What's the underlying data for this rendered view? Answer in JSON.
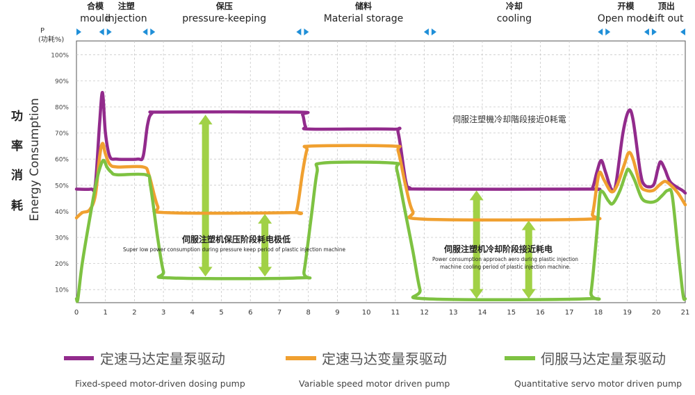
{
  "phases": [
    {
      "cn": "合模",
      "en": "mould"
    },
    {
      "cn": "注塑",
      "en": "injection"
    },
    {
      "cn": "保压",
      "en": "pressure-keeping"
    },
    {
      "cn": "储料",
      "en": "Material storage"
    },
    {
      "cn": "冷却",
      "en": "cooling"
    },
    {
      "cn": "开模",
      "en": "Open mode"
    },
    {
      "cn": "顶出",
      "en": "Lift out"
    }
  ],
  "y_unit_label": [
    "P",
    "(功耗%)"
  ],
  "y_axis_title_cn": [
    "功",
    "率",
    "消",
    "耗"
  ],
  "y_axis_title_en": "Energy Consumption",
  "annotations": {
    "top_right_cn": "伺服注塑機冷却階段接近0耗電",
    "pressure_cn": "伺服注塑机保压阶段耗电极低",
    "pressure_en": "Super low power consumption during pressure keep period of plastic injection machine",
    "cooling_cn": "伺服注塑机冷却阶段接近耗电",
    "cooling_en_1": "Power consumption approach aero during plastic injection",
    "cooling_en_2": "machine cooling period of plastic injection machine."
  },
  "legend": [
    {
      "cn": "定速马达定量泵驱动",
      "en": "Fixed-speed motor-driven dosing pump",
      "color": "#922b8c"
    },
    {
      "cn": "定速马达变量泵驱动",
      "en": "Variable speed motor driven pump",
      "color": "#f0a030"
    },
    {
      "cn": "伺服马达定量泵驱动",
      "en": "Quantitative servo motor driven pump",
      "color": "#7ec242"
    }
  ],
  "colors": {
    "axis_arrow": "#1f8fd8",
    "grid": "#c8c8c8",
    "arrow_fill": "#9ccf3c"
  },
  "chart_data": {
    "type": "line",
    "xlim": [
      0,
      21
    ],
    "ylim": [
      5,
      100
    ],
    "x_ticks": [
      "0",
      "1",
      "2",
      "3",
      "4",
      "5",
      "6",
      "7",
      "8",
      "9",
      "10",
      "11",
      "12",
      "13",
      "14",
      "15",
      "16",
      "17",
      "18",
      "19",
      "20",
      "21"
    ],
    "y_ticks": [
      "10%",
      "20%",
      "30%",
      "40%",
      "50%",
      "60%",
      "70%",
      "80%",
      "90%",
      "100%"
    ],
    "phase_boundaries": [
      0,
      1,
      2.5,
      7.8,
      12.2,
      18.2,
      19.8,
      21
    ],
    "series": [
      {
        "name": "定速马达定量泵驱动",
        "color": "#922b8c",
        "points": [
          [
            0,
            48.5
          ],
          [
            0.5,
            48.5
          ],
          [
            0.65,
            50
          ],
          [
            0.8,
            74
          ],
          [
            0.9,
            85.5
          ],
          [
            1.0,
            70
          ],
          [
            1.15,
            61
          ],
          [
            1.4,
            60
          ],
          [
            2.1,
            60
          ],
          [
            2.3,
            61
          ],
          [
            2.45,
            73
          ],
          [
            2.6,
            77.5
          ],
          [
            3,
            78
          ],
          [
            7.6,
            78
          ],
          [
            7.8,
            77
          ],
          [
            7.9,
            72.5
          ],
          [
            8.1,
            71.5
          ],
          [
            10.9,
            71.5
          ],
          [
            11.1,
            70
          ],
          [
            11.35,
            52
          ],
          [
            11.5,
            49
          ],
          [
            12,
            48.5
          ],
          [
            17.6,
            48.5
          ],
          [
            17.8,
            49
          ],
          [
            17.95,
            55
          ],
          [
            18.1,
            59.5
          ],
          [
            18.25,
            55
          ],
          [
            18.45,
            48.5
          ],
          [
            18.6,
            50
          ],
          [
            18.85,
            70
          ],
          [
            19.05,
            78.5
          ],
          [
            19.2,
            75
          ],
          [
            19.45,
            55
          ],
          [
            19.6,
            50
          ],
          [
            19.9,
            50
          ],
          [
            20.05,
            56
          ],
          [
            20.15,
            59
          ],
          [
            20.3,
            56
          ],
          [
            20.5,
            51
          ],
          [
            20.9,
            48
          ],
          [
            21,
            47
          ]
        ]
      },
      {
        "name": "定速马达变量泵驱动",
        "color": "#f0a030",
        "points": [
          [
            0,
            37.5
          ],
          [
            0.2,
            39.5
          ],
          [
            0.45,
            40.5
          ],
          [
            0.65,
            46
          ],
          [
            0.8,
            61
          ],
          [
            0.9,
            66
          ],
          [
            1.0,
            62
          ],
          [
            1.15,
            58
          ],
          [
            1.4,
            57
          ],
          [
            2.3,
            57
          ],
          [
            2.5,
            54
          ],
          [
            2.8,
            42
          ],
          [
            3.1,
            39.5
          ],
          [
            7.4,
            39.5
          ],
          [
            7.6,
            40.5
          ],
          [
            7.8,
            55
          ],
          [
            7.95,
            63.5
          ],
          [
            8.1,
            65
          ],
          [
            10.9,
            65
          ],
          [
            11.1,
            63
          ],
          [
            11.35,
            50
          ],
          [
            11.6,
            40
          ],
          [
            12,
            37
          ],
          [
            17.6,
            37
          ],
          [
            17.8,
            39
          ],
          [
            17.95,
            50
          ],
          [
            18.05,
            55
          ],
          [
            18.2,
            52
          ],
          [
            18.45,
            47.5
          ],
          [
            18.65,
            50
          ],
          [
            18.9,
            58
          ],
          [
            19.05,
            62.5
          ],
          [
            19.2,
            60
          ],
          [
            19.45,
            50
          ],
          [
            19.65,
            48
          ],
          [
            19.9,
            48
          ],
          [
            20.1,
            50
          ],
          [
            20.3,
            51.5
          ],
          [
            20.5,
            50
          ],
          [
            20.75,
            47
          ],
          [
            21,
            42.5
          ]
        ]
      },
      {
        "name": "伺服马达定量泵驱动",
        "color": "#7ec242",
        "points": [
          [
            0,
            6.5
          ],
          [
            0.05,
            6.5
          ],
          [
            0.2,
            20
          ],
          [
            0.5,
            40
          ],
          [
            0.7,
            52
          ],
          [
            0.85,
            58
          ],
          [
            0.95,
            59.5
          ],
          [
            1.05,
            57
          ],
          [
            1.2,
            55
          ],
          [
            1.4,
            54
          ],
          [
            2.4,
            54
          ],
          [
            2.55,
            50
          ],
          [
            2.8,
            30
          ],
          [
            3.0,
            17
          ],
          [
            3.2,
            14.5
          ],
          [
            7.7,
            14.5
          ],
          [
            7.85,
            17
          ],
          [
            8.1,
            38
          ],
          [
            8.3,
            55
          ],
          [
            8.5,
            58.5
          ],
          [
            10.9,
            58.5
          ],
          [
            11.05,
            56
          ],
          [
            11.3,
            42
          ],
          [
            11.6,
            25
          ],
          [
            11.85,
            10
          ],
          [
            12.05,
            6.5
          ],
          [
            17.6,
            6.5
          ],
          [
            17.75,
            9
          ],
          [
            17.95,
            32
          ],
          [
            18.05,
            46
          ],
          [
            18.15,
            47.5
          ],
          [
            18.35,
            44
          ],
          [
            18.5,
            43
          ],
          [
            18.75,
            48
          ],
          [
            18.95,
            54.5
          ],
          [
            19.05,
            56
          ],
          [
            19.25,
            52
          ],
          [
            19.5,
            45
          ],
          [
            19.75,
            43.5
          ],
          [
            20.0,
            44
          ],
          [
            20.2,
            46
          ],
          [
            20.4,
            48
          ],
          [
            20.55,
            46
          ],
          [
            20.75,
            25
          ],
          [
            20.9,
            10
          ],
          [
            20.95,
            6.5
          ],
          [
            21,
            6.5
          ]
        ]
      }
    ],
    "up_arrows": [
      {
        "x": 4.45,
        "y_from": 15,
        "y_to": 77
      },
      {
        "x": 6.5,
        "y_from": 15,
        "y_to": 39
      },
      {
        "x": 13.8,
        "y_from": 6.5,
        "y_to": 48
      },
      {
        "x": 15.6,
        "y_from": 6.5,
        "y_to": 36.5
      }
    ]
  }
}
